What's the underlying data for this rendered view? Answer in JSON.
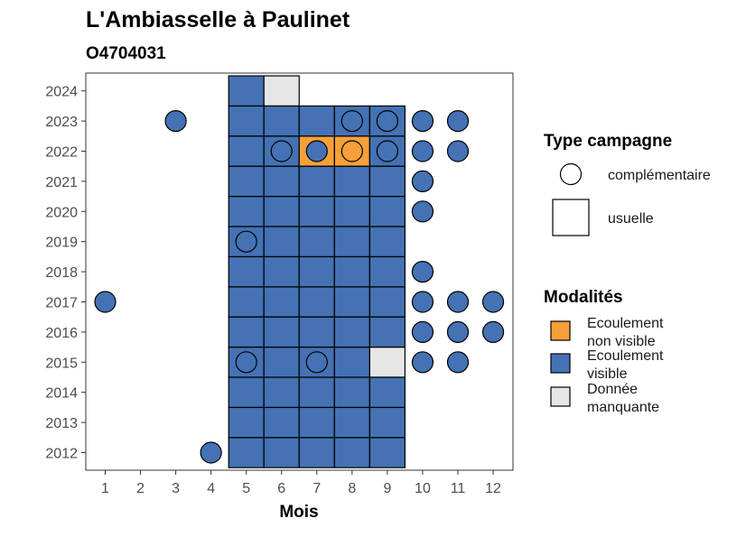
{
  "chart_data": {
    "type": "heatmap",
    "title": "L'Ambiasselle à Paulinet",
    "subtitle": "O4704031",
    "xlabel": "Mois",
    "x_ticks": [
      "1",
      "2",
      "3",
      "4",
      "5",
      "6",
      "7",
      "8",
      "9",
      "10",
      "11",
      "12"
    ],
    "y_ticks": [
      "2012",
      "2013",
      "2014",
      "2015",
      "2016",
      "2017",
      "2018",
      "2019",
      "2020",
      "2021",
      "2022",
      "2023",
      "2024"
    ],
    "xlim": [
      1,
      12
    ],
    "ylim": [
      2012,
      2024
    ],
    "colors": {
      "Ecoulement visible": "#4472b4",
      "Ecoulement non visible": "#f6a03a",
      "Donnée manquante": "#e6e6e6",
      "border": "#000000",
      "panel_border": "#333333",
      "axis_text": "#4d4d4d"
    },
    "legend_type": {
      "title": "Type campagne",
      "items": [
        {
          "shape": "circle",
          "label": "complémentaire"
        },
        {
          "shape": "square",
          "label": "usuelle"
        }
      ]
    },
    "legend_mod": {
      "title": "Modalités",
      "items": [
        {
          "key": "Ecoulement non visible",
          "line1": "Ecoulement",
          "line2": "non visible"
        },
        {
          "key": "Ecoulement visible",
          "line1": "Ecoulement",
          "line2": "visible"
        },
        {
          "key": "Donnée manquante",
          "line1": "Donnée",
          "line2": "manquante"
        }
      ]
    },
    "usuelle": [
      [
        5,
        2012,
        "Ecoulement visible"
      ],
      [
        6,
        2012,
        "Ecoulement visible"
      ],
      [
        7,
        2012,
        "Ecoulement visible"
      ],
      [
        8,
        2012,
        "Ecoulement visible"
      ],
      [
        9,
        2012,
        "Ecoulement visible"
      ],
      [
        5,
        2013,
        "Ecoulement visible"
      ],
      [
        6,
        2013,
        "Ecoulement visible"
      ],
      [
        7,
        2013,
        "Ecoulement visible"
      ],
      [
        8,
        2013,
        "Ecoulement visible"
      ],
      [
        9,
        2013,
        "Ecoulement visible"
      ],
      [
        5,
        2014,
        "Ecoulement visible"
      ],
      [
        6,
        2014,
        "Ecoulement visible"
      ],
      [
        7,
        2014,
        "Ecoulement visible"
      ],
      [
        8,
        2014,
        "Ecoulement visible"
      ],
      [
        9,
        2014,
        "Ecoulement visible"
      ],
      [
        5,
        2015,
        "Ecoulement visible"
      ],
      [
        6,
        2015,
        "Ecoulement visible"
      ],
      [
        7,
        2015,
        "Ecoulement visible"
      ],
      [
        8,
        2015,
        "Ecoulement visible"
      ],
      [
        9,
        2015,
        "Donnée manquante"
      ],
      [
        5,
        2016,
        "Ecoulement visible"
      ],
      [
        6,
        2016,
        "Ecoulement visible"
      ],
      [
        7,
        2016,
        "Ecoulement visible"
      ],
      [
        8,
        2016,
        "Ecoulement visible"
      ],
      [
        9,
        2016,
        "Ecoulement visible"
      ],
      [
        5,
        2017,
        "Ecoulement visible"
      ],
      [
        6,
        2017,
        "Ecoulement visible"
      ],
      [
        7,
        2017,
        "Ecoulement visible"
      ],
      [
        8,
        2017,
        "Ecoulement visible"
      ],
      [
        9,
        2017,
        "Ecoulement visible"
      ],
      [
        5,
        2018,
        "Ecoulement visible"
      ],
      [
        6,
        2018,
        "Ecoulement visible"
      ],
      [
        7,
        2018,
        "Ecoulement visible"
      ],
      [
        8,
        2018,
        "Ecoulement visible"
      ],
      [
        9,
        2018,
        "Ecoulement visible"
      ],
      [
        5,
        2019,
        "Ecoulement visible"
      ],
      [
        6,
        2019,
        "Ecoulement visible"
      ],
      [
        7,
        2019,
        "Ecoulement visible"
      ],
      [
        8,
        2019,
        "Ecoulement visible"
      ],
      [
        9,
        2019,
        "Ecoulement visible"
      ],
      [
        5,
        2020,
        "Ecoulement visible"
      ],
      [
        6,
        2020,
        "Ecoulement visible"
      ],
      [
        7,
        2020,
        "Ecoulement visible"
      ],
      [
        8,
        2020,
        "Ecoulement visible"
      ],
      [
        9,
        2020,
        "Ecoulement visible"
      ],
      [
        5,
        2021,
        "Ecoulement visible"
      ],
      [
        6,
        2021,
        "Ecoulement visible"
      ],
      [
        7,
        2021,
        "Ecoulement visible"
      ],
      [
        8,
        2021,
        "Ecoulement visible"
      ],
      [
        9,
        2021,
        "Ecoulement visible"
      ],
      [
        5,
        2022,
        "Ecoulement visible"
      ],
      [
        6,
        2022,
        "Ecoulement visible"
      ],
      [
        7,
        2022,
        "Ecoulement non visible"
      ],
      [
        8,
        2022,
        "Ecoulement non visible"
      ],
      [
        9,
        2022,
        "Ecoulement visible"
      ],
      [
        5,
        2023,
        "Ecoulement visible"
      ],
      [
        6,
        2023,
        "Ecoulement visible"
      ],
      [
        7,
        2023,
        "Ecoulement visible"
      ],
      [
        8,
        2023,
        "Ecoulement visible"
      ],
      [
        9,
        2023,
        "Ecoulement visible"
      ],
      [
        5,
        2024,
        "Ecoulement visible"
      ],
      [
        6,
        2024,
        "Donnée manquante"
      ]
    ],
    "complementaire": [
      [
        4,
        2012,
        "Ecoulement visible"
      ],
      [
        5,
        2015,
        "Ecoulement visible"
      ],
      [
        7,
        2015,
        "Ecoulement visible"
      ],
      [
        10,
        2015,
        "Ecoulement visible"
      ],
      [
        11,
        2015,
        "Ecoulement visible"
      ],
      [
        10,
        2016,
        "Ecoulement visible"
      ],
      [
        11,
        2016,
        "Ecoulement visible"
      ],
      [
        12,
        2016,
        "Ecoulement visible"
      ],
      [
        1,
        2017,
        "Ecoulement visible"
      ],
      [
        10,
        2017,
        "Ecoulement visible"
      ],
      [
        11,
        2017,
        "Ecoulement visible"
      ],
      [
        12,
        2017,
        "Ecoulement visible"
      ],
      [
        10,
        2018,
        "Ecoulement visible"
      ],
      [
        5,
        2019,
        "Ecoulement visible"
      ],
      [
        10,
        2020,
        "Ecoulement visible"
      ],
      [
        10,
        2021,
        "Ecoulement visible"
      ],
      [
        6,
        2022,
        "Ecoulement visible"
      ],
      [
        7,
        2022,
        "Ecoulement visible"
      ],
      [
        8,
        2022,
        "Ecoulement non visible"
      ],
      [
        9,
        2022,
        "Ecoulement visible"
      ],
      [
        10,
        2022,
        "Ecoulement visible"
      ],
      [
        11,
        2022,
        "Ecoulement visible"
      ],
      [
        3,
        2023,
        "Ecoulement visible"
      ],
      [
        8,
        2023,
        "Ecoulement visible"
      ],
      [
        9,
        2023,
        "Ecoulement visible"
      ],
      [
        10,
        2023,
        "Ecoulement visible"
      ],
      [
        11,
        2023,
        "Ecoulement visible"
      ]
    ]
  }
}
